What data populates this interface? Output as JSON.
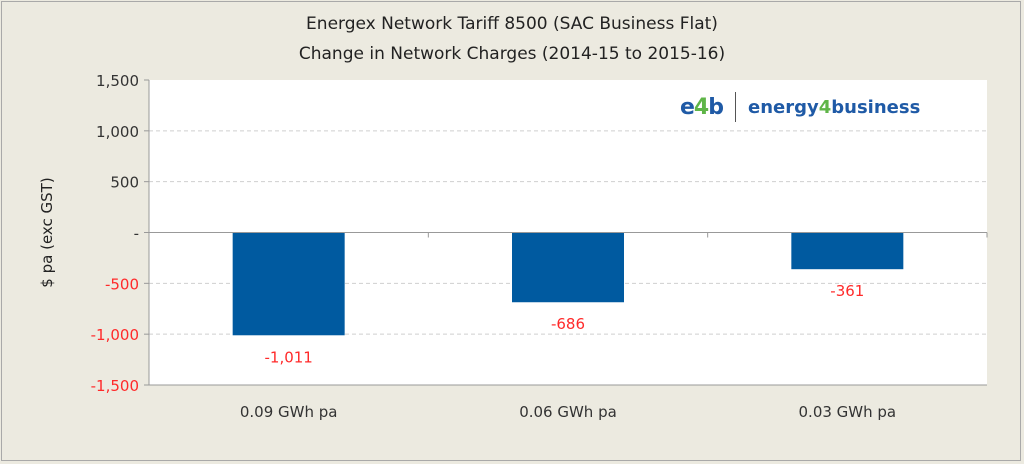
{
  "chart_data": {
    "type": "bar",
    "title": "Energex  Network Tariff  8500 (SAC Business Flat)",
    "subtitle": "Change in Network Charges (2014-15 to 2015-16)",
    "xlabel": "",
    "ylabel": "$ pa (exc GST)",
    "categories": [
      "0.09 GWh pa",
      "0.06 GWh pa",
      "0.03 GWh pa"
    ],
    "values": [
      -1011,
      -686,
      -361
    ],
    "data_labels": [
      "-1,011",
      "-686",
      "-361"
    ],
    "ylim": [
      -1500,
      1500
    ],
    "yticks": [
      1500,
      1000,
      500,
      0,
      -500,
      -1000,
      -1500
    ],
    "ytick_labels": [
      "1,500",
      "1,000",
      "500",
      "-",
      "-500",
      "-1,000",
      "-1,500"
    ],
    "grid": true,
    "bar_color": "#005aa0",
    "negative_label_color": "#ff2a2a"
  },
  "logo": {
    "short": "e4b",
    "name": "energy4business",
    "primary_color": "#1f5aa6",
    "accent_color": "#5fb548"
  }
}
